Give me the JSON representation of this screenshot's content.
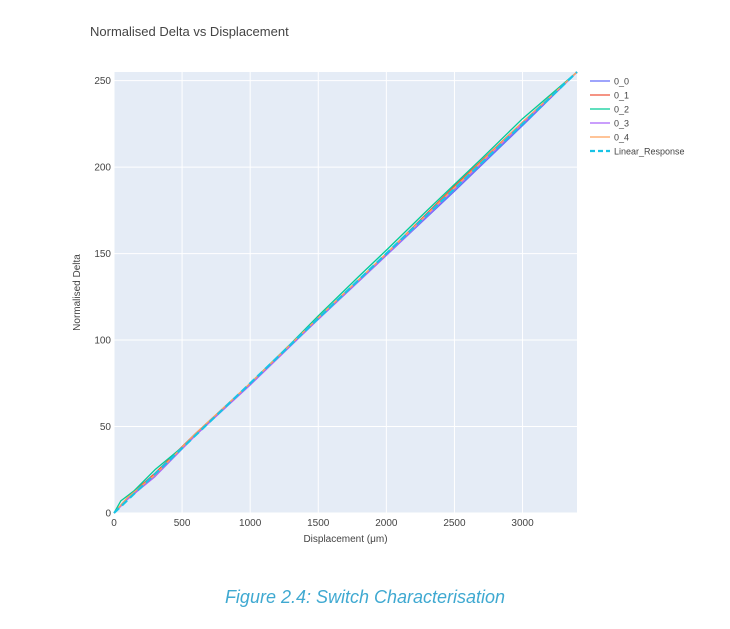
{
  "caption": "Figure 2.4: Switch Characterisation",
  "chart_data": {
    "type": "line",
    "title": "Normalised Delta vs Displacement",
    "xlabel": "Displacement (μm)",
    "ylabel": "Normalised Delta",
    "xlim": [
      0,
      3400
    ],
    "ylim": [
      0,
      255
    ],
    "x_ticks": [
      0,
      500,
      1000,
      1500,
      2000,
      2500,
      3000
    ],
    "y_ticks": [
      0,
      50,
      100,
      150,
      200,
      250
    ],
    "grid": true,
    "legend_position": "top-right",
    "plot_background": "#e5ecf6",
    "series": [
      {
        "name": "0_0",
        "color": "#636efa",
        "dash": "solid",
        "x": [
          0,
          100,
          300,
          600,
          1000,
          1500,
          2000,
          2500,
          3000,
          3400
        ],
        "y": [
          0,
          8,
          22,
          45,
          75,
          112,
          149,
          186,
          224,
          255
        ]
      },
      {
        "name": "0_1",
        "color": "#ef553b",
        "dash": "solid",
        "x": [
          0,
          100,
          300,
          600,
          1000,
          1500,
          2000,
          2500,
          3000,
          3400
        ],
        "y": [
          0,
          9,
          23,
          46,
          75,
          113,
          150,
          189,
          226,
          255
        ]
      },
      {
        "name": "0_2",
        "color": "#00cc96",
        "dash": "solid",
        "x": [
          0,
          50,
          150,
          300,
          500,
          700,
          1000,
          1300,
          1500,
          1800,
          2000,
          2300,
          2700,
          3000,
          3400
        ],
        "y": [
          0,
          7,
          13,
          25,
          38,
          53,
          75,
          98,
          114,
          137,
          152,
          175,
          205,
          228,
          255
        ]
      },
      {
        "name": "0_3",
        "color": "#ab63fa",
        "dash": "solid",
        "x": [
          0,
          100,
          300,
          600,
          1000,
          1500,
          2000,
          2500,
          3000,
          3400
        ],
        "y": [
          0,
          8,
          21,
          45,
          74,
          112,
          149,
          187,
          225,
          255
        ]
      },
      {
        "name": "0_4",
        "color": "#ffa15a",
        "dash": "solid",
        "x": [
          0,
          100,
          300,
          600,
          1000,
          1500,
          2000,
          2500,
          3000,
          3400
        ],
        "y": [
          0,
          9,
          22,
          46,
          75,
          113,
          150,
          188,
          226,
          255
        ]
      },
      {
        "name": "Linear_Response",
        "color": "#19c3e6",
        "dash": "dash",
        "x": [
          0,
          3400
        ],
        "y": [
          0,
          255
        ]
      }
    ]
  }
}
